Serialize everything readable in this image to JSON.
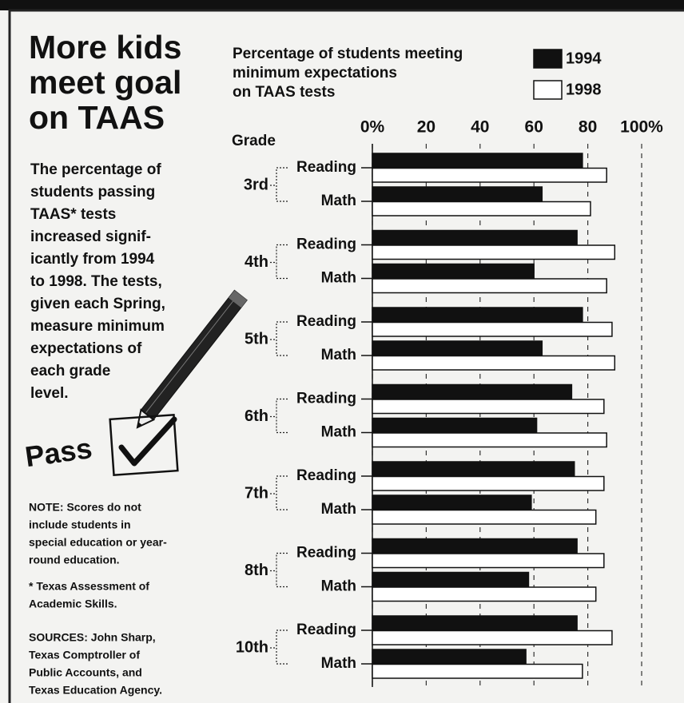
{
  "title_lines": [
    "More kids",
    "meet goal",
    "on TAAS"
  ],
  "description_lines": [
    "The percentage of",
    "students passing",
    "TAAS* tests",
    "increased signif-",
    "icantly from 1994",
    "to 1998. The tests,",
    "given each Spring,",
    "measure minimum",
    "expectations of",
    "each grade",
    "level."
  ],
  "stamp": "Pass",
  "note_lines": [
    "NOTE: Scores do not",
    "include students in",
    "special education or year-",
    "round education."
  ],
  "footnote_lines": [
    "* Texas Assessment of",
    "Academic Skills."
  ],
  "sources_lines": [
    "SOURCES: John Sharp,",
    "Texas Comptroller of",
    "Public Accounts, and",
    "Texas Education Agency."
  ],
  "chart_data": {
    "type": "bar",
    "orientation": "horizontal",
    "subtitle_lines": [
      "Percentage of students meeting",
      "minimum expectations",
      "on TAAS tests"
    ],
    "y_axis_label": "Grade",
    "groups": [
      {
        "name": "3rd",
        "categories": [
          "Reading",
          "Math"
        ]
      },
      {
        "name": "4th",
        "categories": [
          "Reading",
          "Math"
        ]
      },
      {
        "name": "5th",
        "categories": [
          "Reading",
          "Math"
        ]
      },
      {
        "name": "6th",
        "categories": [
          "Reading",
          "Math"
        ]
      },
      {
        "name": "7th",
        "categories": [
          "Reading",
          "Math"
        ]
      },
      {
        "name": "8th",
        "categories": [
          "Reading",
          "Math"
        ]
      },
      {
        "name": "10th",
        "categories": [
          "Reading",
          "Math"
        ]
      }
    ],
    "series": [
      {
        "name": "1994",
        "color": "#111111",
        "values": [
          78,
          63,
          76,
          60,
          78,
          63,
          74,
          61,
          75,
          59,
          76,
          58,
          76,
          57
        ]
      },
      {
        "name": "1998",
        "color": "#ffffff",
        "values": [
          87,
          81,
          90,
          87,
          89,
          90,
          86,
          87,
          86,
          83,
          86,
          83,
          89,
          78
        ]
      }
    ],
    "xlim": [
      0,
      100
    ],
    "xticks": [
      {
        "value": 0,
        "label": "0%"
      },
      20,
      40,
      60,
      80,
      {
        "value": 100,
        "label": "100%"
      }
    ],
    "grid": true
  }
}
